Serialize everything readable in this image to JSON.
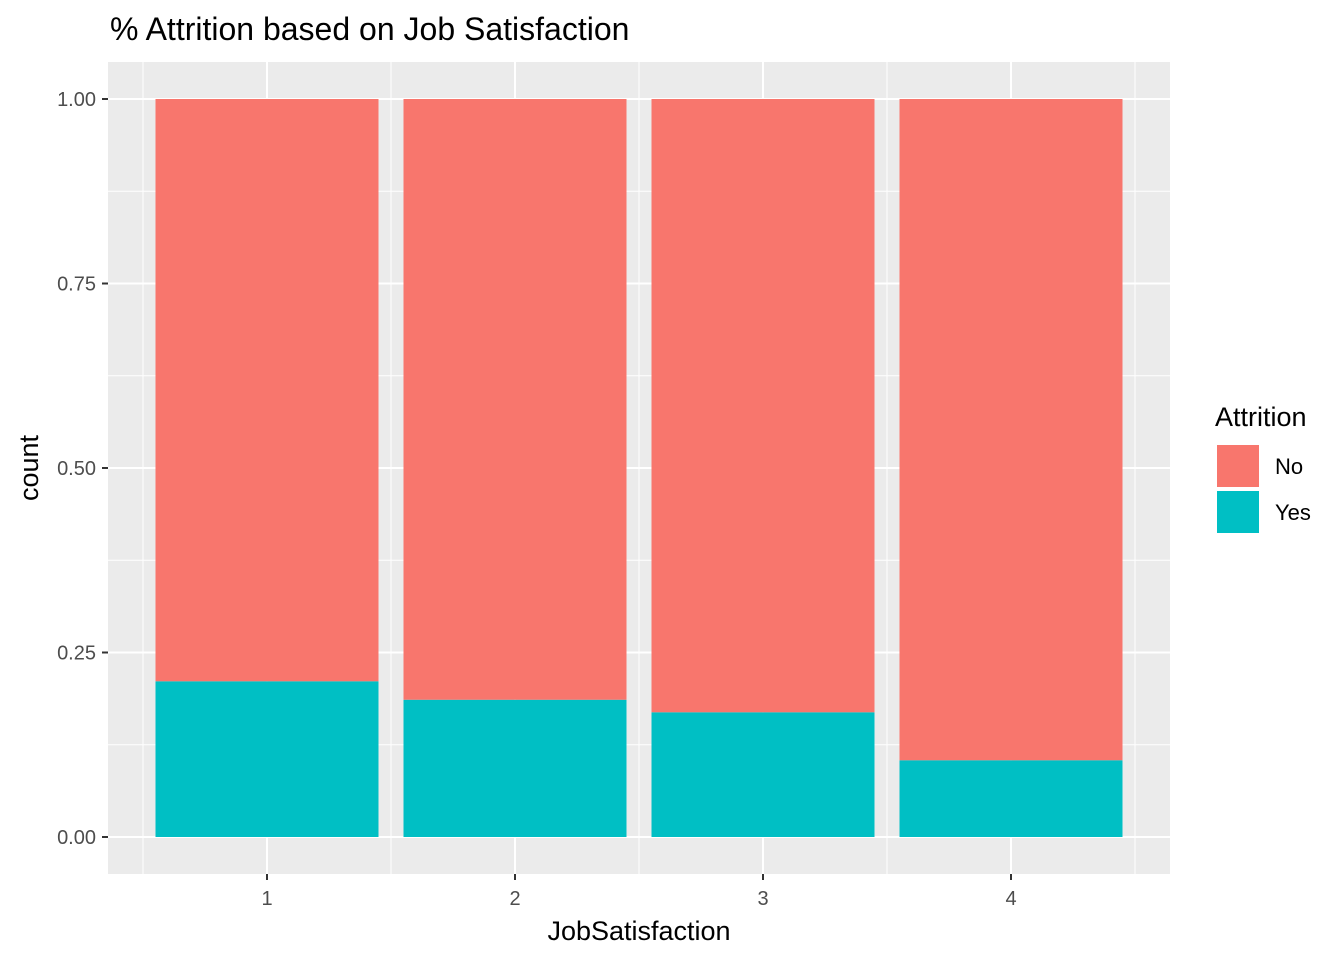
{
  "chart_data": {
    "type": "bar",
    "stacked": true,
    "position": "fill",
    "title": "% Attrition based on Job Satisfaction",
    "xlabel": "JobSatisfaction",
    "ylabel": "count",
    "categories": [
      "1",
      "2",
      "3",
      "4"
    ],
    "series": [
      {
        "name": "No",
        "color": "#F8766D",
        "values": [
          0.789,
          0.814,
          0.831,
          0.896
        ]
      },
      {
        "name": "Yes",
        "color": "#00BFC4",
        "values": [
          0.211,
          0.186,
          0.169,
          0.104
        ]
      }
    ],
    "ylim": [
      0,
      1
    ],
    "yticks": [
      "0.00",
      "0.25",
      "0.50",
      "0.75",
      "1.00"
    ],
    "grid": true,
    "panel_background": "#EBEBEB",
    "legend": {
      "title": "Attrition",
      "placement": "right"
    }
  }
}
